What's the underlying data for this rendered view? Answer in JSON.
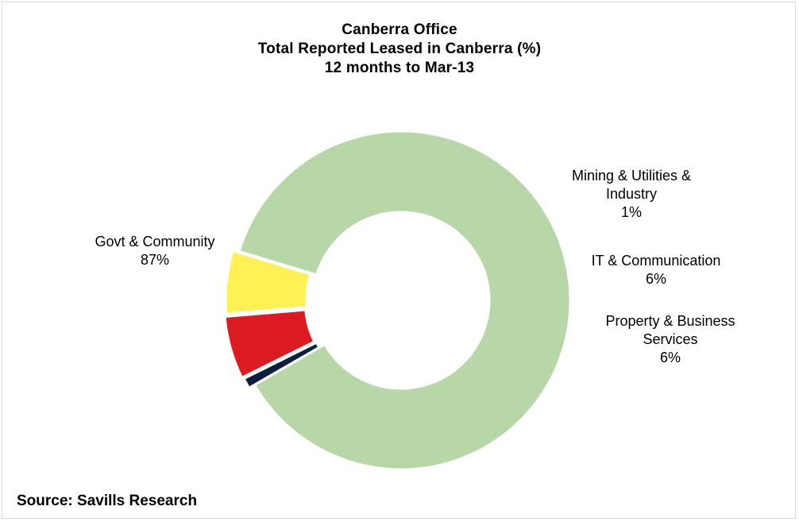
{
  "chart_data": {
    "type": "pie",
    "title": "Canberra Office",
    "subtitle_lines": [
      "Total Reported Leased in Canberra (%)",
      "12 months to Mar-13"
    ],
    "slices": [
      {
        "name_lines": [
          "Govt & Community"
        ],
        "value": 87,
        "value_label": "87%",
        "color": "#b7d7a8"
      },
      {
        "name_lines": [
          "Mining & Utilities &",
          "Industry"
        ],
        "value": 1,
        "value_label": "1%",
        "color": "#0d1f3c"
      },
      {
        "name_lines": [
          "IT & Communication"
        ],
        "value": 6,
        "value_label": "6%",
        "color": "#dd1b22"
      },
      {
        "name_lines": [
          "Property & Business",
          "Services"
        ],
        "value": 6,
        "value_label": "6%",
        "color": "#fff056"
      }
    ],
    "donut": true,
    "legend": "none"
  },
  "source": "Source: Savills Research"
}
